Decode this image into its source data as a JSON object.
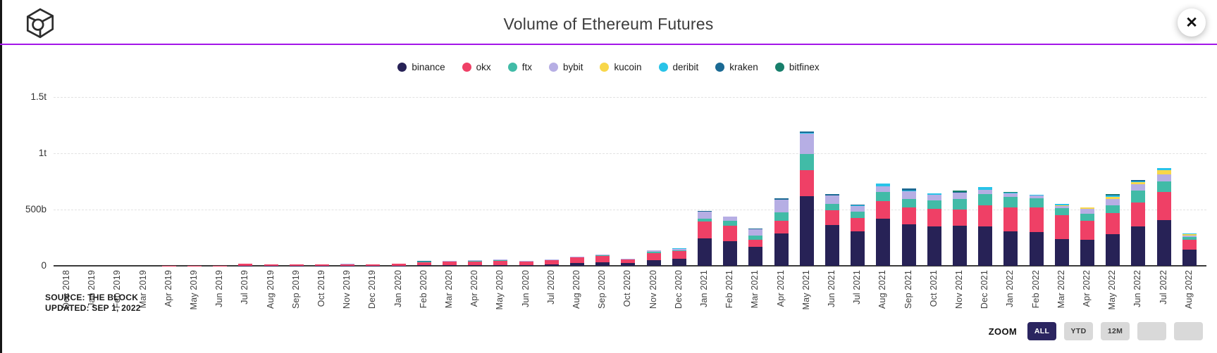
{
  "header": {
    "title": "Volume of Ethereum Futures",
    "close_glyph": "✕",
    "divider_color": "#A316E8"
  },
  "footer": {
    "source_line1": "SOURCE: THE BLOCK",
    "source_line2": "UPDATED: SEP 1, 2022",
    "zoom": {
      "label": "ZOOM",
      "active_bg": "#2B2560",
      "inactive_bg": "#D9D9D9",
      "buttons": [
        {
          "label": "ALL",
          "active": true
        },
        {
          "label": "YTD",
          "active": false
        },
        {
          "label": "12M",
          "active": false
        },
        {
          "label": "",
          "active": false
        },
        {
          "label": "",
          "active": false
        }
      ]
    }
  },
  "chart_data": {
    "type": "bar",
    "stacked": true,
    "title": "Volume of Ethereum Futures",
    "unit": "billions USD",
    "ylim": [
      0,
      1600
    ],
    "grid": "dashed horizontal",
    "legend_position": "top center",
    "yticks": [
      {
        "label": "1.5t",
        "value": 1500
      },
      {
        "label": "1t",
        "value": 1000
      },
      {
        "label": "500b",
        "value": 500
      },
      {
        "label": "0",
        "value": 0
      }
    ],
    "categories": [
      "Dec 2018",
      "Jan 2019",
      "Feb 2019",
      "Mar 2019",
      "Apr 2019",
      "May 2019",
      "Jun 2019",
      "Jul 2019",
      "Aug 2019",
      "Sep 2019",
      "Oct 2019",
      "Nov 2019",
      "Dec 2019",
      "Jan 2020",
      "Feb 2020",
      "Mar 2020",
      "Apr 2020",
      "May 2020",
      "Jun 2020",
      "Jul 2020",
      "Aug 2020",
      "Sep 2020",
      "Oct 2020",
      "Nov 2020",
      "Dec 2020",
      "Jan 2021",
      "Feb 2021",
      "Mar 2021",
      "Apr 2021",
      "May 2021",
      "Jun 2021",
      "Jul 2021",
      "Aug 2021",
      "Sep 2021",
      "Oct 2021",
      "Nov 2021",
      "Dec 2021",
      "Jan 2022",
      "Feb 2022",
      "Mar 2022",
      "Apr 2022",
      "May 2022",
      "Jun 2022",
      "Jul 2022",
      "Aug 2022"
    ],
    "series": [
      {
        "name": "binance",
        "color": "#272256",
        "values": [
          0,
          0,
          0,
          0,
          0,
          0,
          0,
          1,
          1,
          1,
          1,
          1,
          1,
          2,
          6,
          7,
          8,
          8,
          8,
          12,
          25,
          30,
          22,
          52,
          62,
          245,
          219,
          171,
          285,
          619,
          365,
          308,
          417,
          371,
          350,
          354,
          350,
          308,
          302,
          240,
          229,
          281,
          350,
          408,
          146
        ]
      },
      {
        "name": "okx",
        "color": "#EF4066",
        "values": [
          0,
          0,
          0,
          0,
          1,
          1,
          2,
          16,
          10,
          10,
          10,
          13,
          9,
          15,
          28,
          28,
          32,
          38,
          28,
          36,
          48,
          55,
          32,
          62,
          68,
          146,
          135,
          58,
          117,
          229,
          129,
          119,
          156,
          150,
          156,
          148,
          188,
          213,
          215,
          208,
          173,
          188,
          213,
          248,
          83
        ]
      },
      {
        "name": "ftx",
        "color": "#41BBA7",
        "values": [
          0,
          0,
          0,
          0,
          0,
          0,
          0,
          1,
          1,
          1,
          1,
          1,
          1,
          1,
          2,
          5,
          4,
          4,
          4,
          5,
          5,
          6,
          4,
          10,
          10,
          29,
          48,
          37,
          71,
          148,
          58,
          52,
          83,
          73,
          73,
          94,
          98,
          90,
          83,
          63,
          63,
          69,
          104,
          94,
          27
        ]
      },
      {
        "name": "bybit",
        "color": "#B6AEE4",
        "values": [
          0,
          0,
          0,
          0,
          0,
          0,
          0,
          1,
          1,
          1,
          1,
          1,
          1,
          2,
          3,
          3,
          5,
          4,
          4,
          4,
          4,
          6,
          4,
          13,
          12,
          60,
          33,
          58,
          112,
          180,
          70,
          50,
          52,
          69,
          52,
          52,
          37,
          31,
          27,
          23,
          42,
          56,
          58,
          63,
          10
        ]
      },
      {
        "name": "kucoin",
        "color": "#F8D74A",
        "values": [
          0,
          0,
          0,
          0,
          0,
          0,
          0,
          0,
          0,
          0,
          0,
          0,
          0,
          0,
          0,
          0,
          0,
          0,
          0,
          0,
          0,
          0,
          0,
          0,
          0,
          0,
          0,
          0,
          0,
          0,
          0,
          0,
          0,
          0,
          0,
          0,
          0,
          0,
          0,
          1,
          10,
          17,
          21,
          38,
          17
        ]
      },
      {
        "name": "deribit",
        "color": "#28C3E8",
        "values": [
          0,
          0,
          0,
          0,
          0,
          0,
          0,
          0,
          0,
          0,
          0,
          0,
          0,
          0,
          0,
          0,
          0,
          0,
          0,
          0,
          0,
          0,
          0,
          2,
          2,
          4,
          3,
          4,
          5,
          8,
          5,
          8,
          25,
          5,
          10,
          5,
          25,
          5,
          4,
          13,
          4,
          15,
          5,
          15,
          5
        ]
      },
      {
        "name": "kraken",
        "color": "#1B6A94",
        "values": [
          0,
          0,
          0,
          0,
          0,
          0,
          0,
          0,
          0,
          0,
          0,
          0,
          0,
          0,
          5,
          2,
          1,
          1,
          1,
          1,
          1,
          1,
          1,
          1,
          1,
          3,
          2,
          2,
          8,
          11,
          8,
          5,
          0,
          22,
          1,
          5,
          0,
          0,
          0,
          0,
          0,
          5,
          9,
          5,
          0
        ]
      },
      {
        "name": "bitfinex",
        "color": "#177F6B",
        "values": [
          0,
          0,
          0,
          0,
          0,
          0,
          0,
          0,
          0,
          0,
          0,
          0,
          0,
          0,
          0,
          0,
          0,
          0,
          0,
          0,
          0,
          0,
          0,
          0,
          0,
          0,
          0,
          0,
          0,
          0,
          0,
          0,
          0,
          0,
          0,
          9,
          0,
          9,
          0,
          0,
          0,
          4,
          0,
          0,
          0
        ]
      }
    ]
  }
}
